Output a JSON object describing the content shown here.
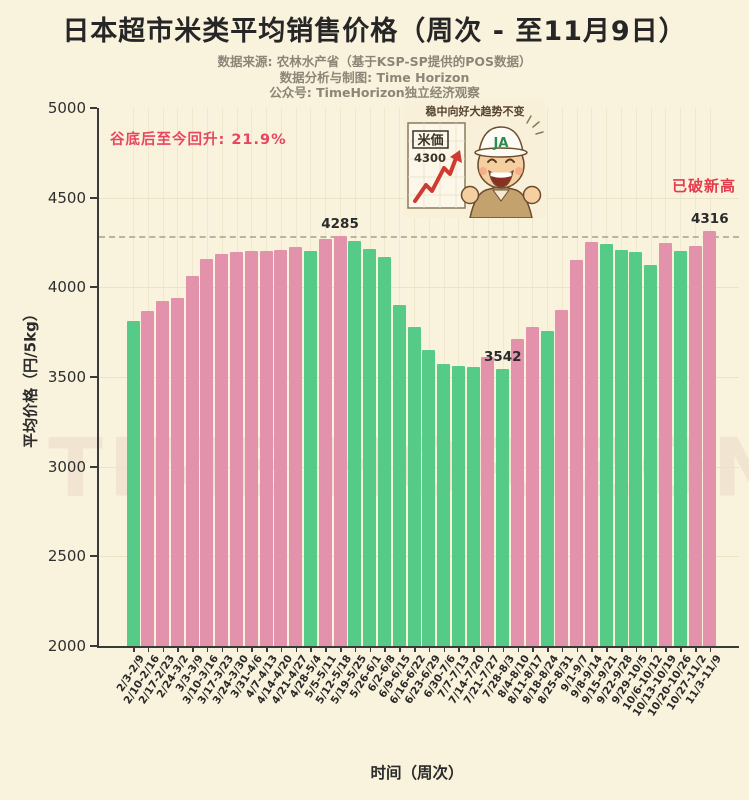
{
  "title": "日本超市米类平均销售价格（周次 - 至11月9日）",
  "subtitles": [
    "数据来源: 农林水产省（基于KSP-SP提供的POS数据）",
    "数据分析与制图: Time Horizon",
    "公众号: TimeHorizon独立经济观察"
  ],
  "annotations": {
    "recovery": "谷底后至今回升: 21.9%",
    "new_high": "已破新高"
  },
  "watermark": "TIME HORIZON",
  "cartoon": {
    "banner": "稳中向好大趋势不变",
    "sign_title": "米価",
    "sign_value": "4300",
    "cap_text": "JA"
  },
  "colors": {
    "rise": "#e293ab",
    "fall": "#55cb87",
    "background": "#f9f2dc",
    "accent_red": "#e8455f",
    "axis": "#3a3a3a"
  },
  "chart_data": {
    "type": "bar",
    "title": "日本超市米类平均销售价格（周次 - 至11月9日）",
    "xlabel": "时间（周次）",
    "ylabel": "平均价格（円/5kg）",
    "ylim": [
      2000,
      5000
    ],
    "yticks": [
      2000,
      2500,
      3000,
      3500,
      4000,
      4500,
      5000
    ],
    "grid": true,
    "legend": false,
    "reference_line": 4285,
    "color_rule": "pink = week-over-week rise, green = week-over-week fall",
    "categories": [
      "2/3-2/9",
      "2/10-2/16",
      "2/17-2/23",
      "2/24-3/2",
      "3/3-3/9",
      "3/10-3/16",
      "3/17-3/23",
      "3/24-3/30",
      "3/31-4/6",
      "4/7-4/13",
      "4/14-4/20",
      "4/21-4/27",
      "4/28-5/4",
      "5/5-5/11",
      "5/12-5/18",
      "5/19-5/25",
      "5/26-6/1",
      "6/2-6/8",
      "6/9-6/15",
      "6/16-6/22",
      "6/23-6/29",
      "6/30-7/6",
      "7/7-7/13",
      "7/14-7/20",
      "7/21-7/27",
      "7/28-8/3",
      "8/4-8/10",
      "8/11-8/17",
      "8/18-8/24",
      "8/25-8/31",
      "9/1-9/7",
      "9/8-9/14",
      "9/15-9/21",
      "9/22-9/28",
      "9/29-10/5",
      "10/6-10/12",
      "10/13-10/19",
      "10/20-10/26",
      "10/27-11/2",
      "11/3-11/9"
    ],
    "values": [
      3810,
      3870,
      3925,
      3940,
      4065,
      4160,
      4185,
      4195,
      4200,
      4205,
      4210,
      4225,
      4200,
      4268,
      4285,
      4260,
      4215,
      4170,
      3900,
      3780,
      3650,
      3575,
      3560,
      3555,
      3610,
      3542,
      3710,
      3780,
      3755,
      3875,
      4150,
      4255,
      4240,
      4210,
      4195,
      4125,
      4250,
      4205,
      4230,
      4316
    ],
    "bar_labels": [
      {
        "index": 14,
        "text": "4285"
      },
      {
        "index": 25,
        "text": "3542"
      },
      {
        "index": 39,
        "text": "4316"
      }
    ]
  }
}
